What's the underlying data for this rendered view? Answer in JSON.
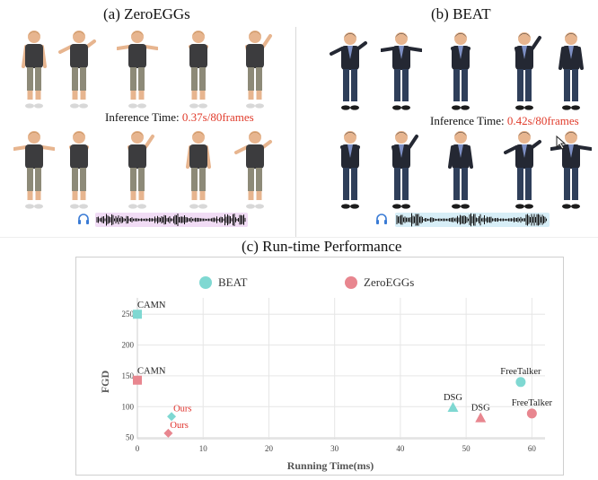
{
  "panels": {
    "a": {
      "title": "(a) ZeroEGGs",
      "infer_prefix": "Inference Time: ",
      "infer_value": "0.37s/80frames"
    },
    "b": {
      "title": "(b) BEAT",
      "infer_prefix": "Inference Time: ",
      "infer_value": "0.42s/80frames"
    }
  },
  "chart_title": "(c) Run-time Performance",
  "colors": {
    "beat": "#7fd8d2",
    "zeroeggs": "#e8868f",
    "ours_label": "#e0322c",
    "grid": "#e6e6e6"
  },
  "icons": [
    "headphone-icon",
    "headphone-icon"
  ],
  "chart_data": {
    "type": "scatter",
    "title": "(c) Run-time Performance",
    "xlabel": "Running Time(ms)",
    "ylabel": "FGD",
    "xlim": [
      0,
      62
    ],
    "ylim": [
      48,
      262
    ],
    "xticks": [
      0,
      10,
      20,
      30,
      40,
      50,
      60
    ],
    "yticks": [
      50,
      100,
      150,
      200,
      250
    ],
    "legend": [
      "BEAT",
      "ZeroEGGs"
    ],
    "legend_position": "top",
    "grid": true,
    "series": [
      {
        "name": "BEAT",
        "points": [
          {
            "label": "CAMN",
            "x": 0,
            "y": 250,
            "marker": "square"
          },
          {
            "label": "Ours",
            "x": 5.2,
            "y": 84,
            "marker": "diamond"
          },
          {
            "label": "DSG",
            "x": 48,
            "y": 99,
            "marker": "triangle"
          },
          {
            "label": "FreeTalker",
            "x": 58.3,
            "y": 140,
            "marker": "circle"
          }
        ]
      },
      {
        "name": "ZeroEGGs",
        "points": [
          {
            "label": "CAMN",
            "x": 0,
            "y": 143,
            "marker": "square"
          },
          {
            "label": "Ours",
            "x": 4.7,
            "y": 57,
            "marker": "diamond"
          },
          {
            "label": "DSG",
            "x": 52.2,
            "y": 82,
            "marker": "triangle"
          },
          {
            "label": "FreeTalker",
            "x": 60,
            "y": 89,
            "marker": "circle"
          }
        ]
      }
    ]
  }
}
